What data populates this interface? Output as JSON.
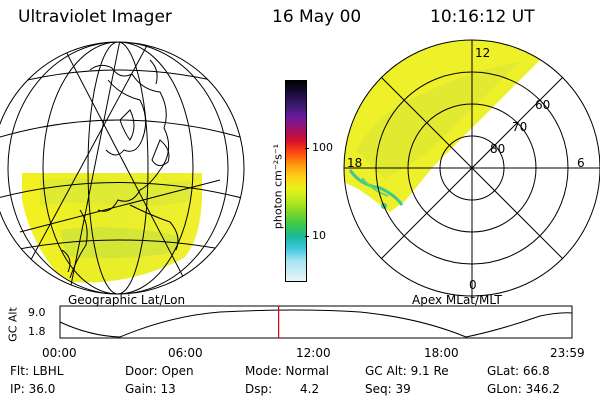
{
  "header": {
    "instrument": "Ultraviolet Imager",
    "date": "16 May 00",
    "time": "10:16:12 UT"
  },
  "colorbar": {
    "label": "photon cm⁻²s⁻¹",
    "ticks": [
      "100",
      "10"
    ],
    "colors": [
      "#000000",
      "#1a0a3c",
      "#3a1a6e",
      "#6a1aa0",
      "#a0106a",
      "#d4102a",
      "#ff4a10",
      "#ff9a10",
      "#ffd21a",
      "#e6f018",
      "#b8e820",
      "#7ad62a",
      "#3ac84a",
      "#1ab8a0",
      "#40c8e0",
      "#a8e4f0",
      "#e8f4f8"
    ]
  },
  "left_map": {
    "title": "Geographic Lat/Lon"
  },
  "right_map": {
    "title": "Apex MLat/MLT",
    "mlt_labels": [
      "12",
      "18",
      "6",
      "0"
    ],
    "lat_labels": [
      "60",
      "70",
      "80"
    ]
  },
  "timeline": {
    "y_axis_label": "GC Alt",
    "y_ticks": [
      "9.0",
      "1.8"
    ],
    "x_ticks": [
      "00:00",
      "06:00",
      "12:00",
      "18:00",
      "23:59"
    ],
    "current_marker_fraction": 0.427,
    "marker_color": "#e00000"
  },
  "status": {
    "filter": "Flt: LBHL",
    "door": "Door: Open",
    "mode": "Mode: Normal",
    "gc_alt": "GC Alt: 9.1 Re",
    "glat": "GLat:  66.8",
    "ip": "IP: 36.0",
    "gain": "Gain: 13",
    "dsp_label": "Dsp:",
    "dsp_value": "4.2",
    "seq": "Seq: 39",
    "glon": "GLon: 346.2"
  }
}
